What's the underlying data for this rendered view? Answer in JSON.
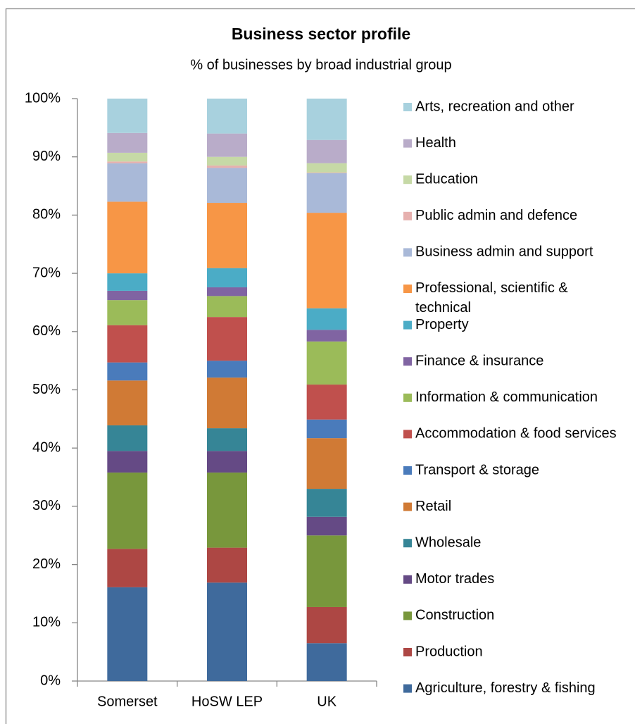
{
  "chart_data": {
    "type": "stacked-bar",
    "title": "Business sector profile",
    "subtitle": "% of businesses by broad industrial group",
    "categories": [
      "Somerset",
      "HoSW LEP",
      "UK"
    ],
    "ylim": [
      0,
      100
    ],
    "yticks": [
      {
        "value": 0,
        "label": "0%"
      },
      {
        "value": 10,
        "label": "10%"
      },
      {
        "value": 20,
        "label": "20%"
      },
      {
        "value": 30,
        "label": "30%"
      },
      {
        "value": 40,
        "label": "40%"
      },
      {
        "value": 50,
        "label": "50%"
      },
      {
        "value": 60,
        "label": "60%"
      },
      {
        "value": 70,
        "label": "70%"
      },
      {
        "value": 80,
        "label": "80%"
      },
      {
        "value": 90,
        "label": "90%"
      },
      {
        "value": 100,
        "label": "100%"
      }
    ],
    "grid": false,
    "legend": "right",
    "series": [
      {
        "name": "Agriculture, forestry & fishing",
        "color": "#3f6a9c",
        "values": [
          16.1,
          16.9,
          6.5
        ]
      },
      {
        "name": "Production",
        "color": "#ad4744",
        "values": [
          6.6,
          6.0,
          6.2
        ]
      },
      {
        "name": "Construction",
        "color": "#78973c",
        "values": [
          13.1,
          12.9,
          12.3
        ]
      },
      {
        "name": "Motor trades",
        "color": "#654a85",
        "values": [
          3.7,
          3.7,
          3.2
        ]
      },
      {
        "name": "Wholesale",
        "color": "#368596",
        "values": [
          4.4,
          3.9,
          4.8
        ]
      },
      {
        "name": "Retail",
        "color": "#d07a35",
        "values": [
          7.7,
          8.7,
          8.7
        ]
      },
      {
        "name": "Transport & storage",
        "color": "#4a7bbb",
        "values": [
          3.1,
          2.9,
          3.2
        ]
      },
      {
        "name": "Accommodation & food services",
        "color": "#c0504d",
        "values": [
          6.4,
          7.5,
          6.0
        ]
      },
      {
        "name": "Information & communication",
        "color": "#9bbb59",
        "values": [
          4.3,
          3.6,
          7.4
        ]
      },
      {
        "name": "Finance & insurance",
        "color": "#8064a2",
        "values": [
          1.6,
          1.5,
          2.0
        ]
      },
      {
        "name": "Property",
        "color": "#4bacc6",
        "values": [
          3.0,
          3.3,
          3.7
        ]
      },
      {
        "name": "Professional, scientific & technical",
        "color": "#f79646",
        "values": [
          12.3,
          11.2,
          16.4
        ]
      },
      {
        "name": "Business admin and support",
        "color": "#a9b9d8",
        "values": [
          6.6,
          6.0,
          6.8
        ]
      },
      {
        "name": "Public admin and defence",
        "color": "#e6b0ae",
        "values": [
          0.3,
          0.4,
          0.1
        ]
      },
      {
        "name": "Education",
        "color": "#c6d9a6",
        "values": [
          1.5,
          1.5,
          1.6
        ]
      },
      {
        "name": "Health",
        "color": "#b9acc9",
        "values": [
          3.4,
          4.0,
          4.0
        ]
      },
      {
        "name": "Arts, recreation and other",
        "color": "#a8d1de",
        "values": [
          5.9,
          6.0,
          7.1
        ]
      }
    ]
  }
}
